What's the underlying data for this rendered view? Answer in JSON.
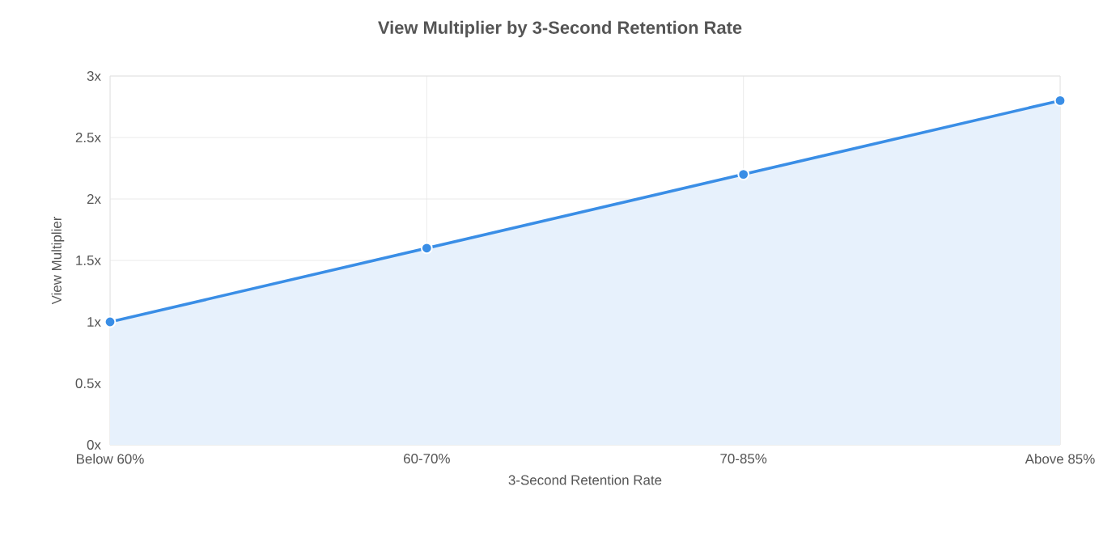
{
  "chart_data": {
    "type": "area",
    "title": "View Multiplier by 3-Second Retention Rate",
    "xlabel": "3-Second Retention Rate",
    "ylabel": "View Multiplier",
    "categories": [
      "Below 60%",
      "60-70%",
      "70-85%",
      "Above 85%"
    ],
    "series": [
      {
        "color": "#3a8ee6",
        "values": [
          1,
          1.6,
          2.2,
          2.8
        ]
      }
    ],
    "ylim": [
      0,
      3
    ],
    "yticks": [
      {
        "value": 0,
        "label": "0x"
      },
      {
        "value": 0.5,
        "label": "0.5x"
      },
      {
        "value": 1,
        "label": "1x"
      },
      {
        "value": 1.5,
        "label": "1.5x"
      },
      {
        "value": 2,
        "label": "2x"
      },
      {
        "value": 2.5,
        "label": "2.5x"
      },
      {
        "value": 3,
        "label": "3x"
      }
    ],
    "grid": true,
    "marker": "circle"
  }
}
